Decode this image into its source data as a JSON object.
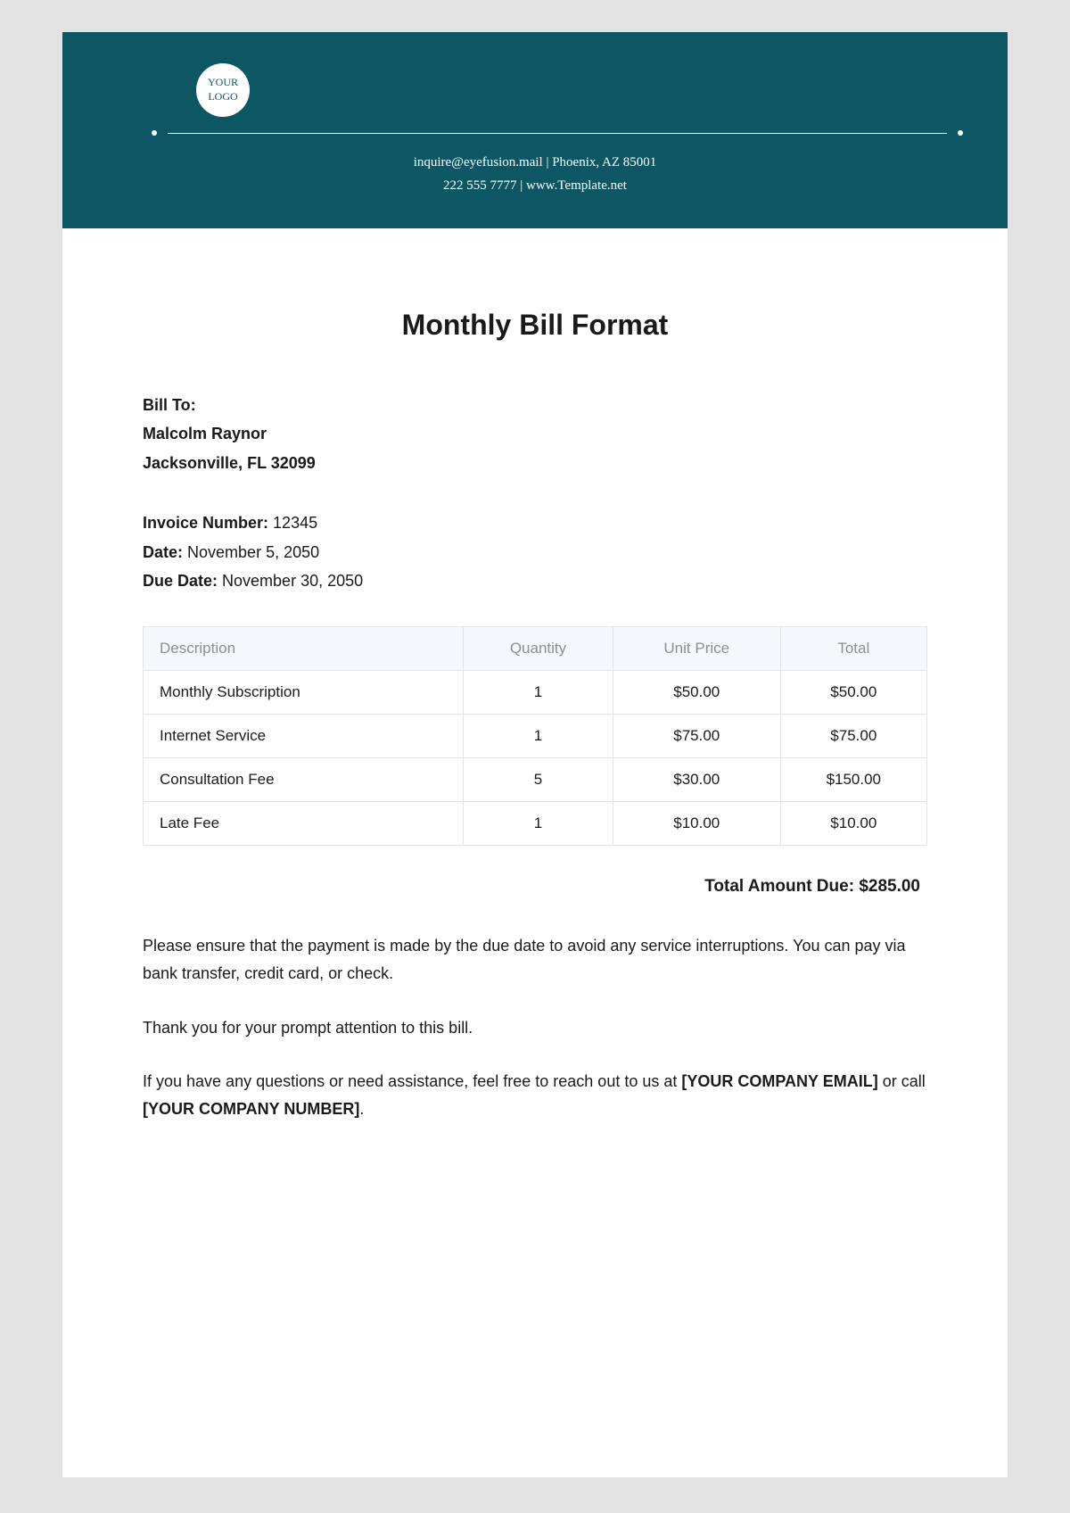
{
  "header": {
    "logo_line1": "YOUR",
    "logo_line2": "LOGO",
    "contact_line1": "inquire@eyefusion.mail | Phoenix, AZ 85001",
    "contact_line2": "222 555 7777 | www.Template.net",
    "bg_color": "#0d5764",
    "logo_bg": "#ffffff",
    "logo_text_color": "#0d5764"
  },
  "title": "Monthly Bill Format",
  "bill_to": {
    "label": "Bill To:",
    "name": "Malcolm Raynor",
    "address": "Jacksonville, FL 32099"
  },
  "meta": {
    "invoice_label": "Invoice Number:",
    "invoice_value": "12345",
    "date_label": "Date:",
    "date_value": "November 5, 2050",
    "due_label": "Due Date:",
    "due_value": "November 30, 2050"
  },
  "table": {
    "columns": [
      "Description",
      "Quantity",
      "Unit Price",
      "Total"
    ],
    "rows": [
      [
        "Monthly Subscription",
        "1",
        "$50.00",
        "$50.00"
      ],
      [
        "Internet Service",
        "1",
        "$75.00",
        "$75.00"
      ],
      [
        "Consultation Fee",
        "5",
        "$30.00",
        "$150.00"
      ],
      [
        "Late Fee",
        "1",
        "$10.00",
        "$10.00"
      ]
    ],
    "header_bg": "#f6f7fa",
    "header_text_color": "#8a8f99",
    "border_color": "#e1e3e8"
  },
  "total": {
    "label": "Total Amount Due: ",
    "value": "$285.00"
  },
  "paragraphs": {
    "p1": "Please ensure that the payment is made by the due date to avoid any service interruptions. You can pay via bank transfer, credit card, or check.",
    "p2": "Thank you for your prompt attention to this bill.",
    "p3_pre": "If you have any questions or need assistance, feel free to reach out to us at ",
    "p3_bold1": "[YOUR COMPANY EMAIL]",
    "p3_mid": " or call ",
    "p3_bold2": "[YOUR COMPANY NUMBER]",
    "p3_end": "."
  }
}
